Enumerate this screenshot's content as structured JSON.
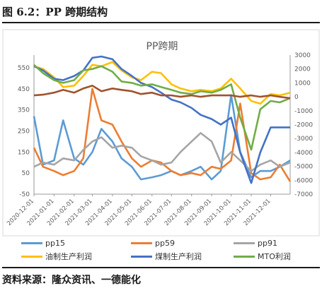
{
  "figure_caption": "图 6.2：PP 跨期结构",
  "source_note": "资料来源：隆众资讯、一德能化",
  "colors": {
    "pp15": "#5b9bd5",
    "pp59": "#ed7d31",
    "pp91": "#a5a5a5",
    "oil_profit": "#ffc000",
    "coal_profit": "#4472c4",
    "mto_profit": "#70ad47",
    "axis": "#999999",
    "text": "#595959"
  },
  "chart_data": {
    "type": "line",
    "title": "PP跨期",
    "x": [
      "2020-12-01",
      "2020-12-15",
      "2021-01-01",
      "2021-01-15",
      "2021-02-01",
      "2021-02-15",
      "2021-03-01",
      "2021-03-15",
      "2021-04-01",
      "2021-04-15",
      "2021-05-01",
      "2021-05-15",
      "2021-06-01",
      "2021-06-15",
      "2021-07-01",
      "2021-07-15",
      "2021-08-01",
      "2021-08-15",
      "2021-09-01",
      "2021-09-15",
      "2021-10-01",
      "2021-10-15",
      "2021-11-01",
      "2021-11-15",
      "2021-12-01",
      "2021-12-15",
      "2021-12-31"
    ],
    "x_tick_labels": [
      "2020-12-01",
      "2021-01-01",
      "2021-02-01",
      "2021-03-01",
      "2021-04-01",
      "2021-05-01",
      "2021-06-01",
      "2021-07-01",
      "2021-08-01",
      "2021-09-01",
      "2021-10-01",
      "2021-11-01",
      "2021-12-01"
    ],
    "y_left": {
      "ticks": [
        "-50",
        "50",
        "150",
        "250",
        "350",
        "450",
        "550"
      ],
      "lim": [
        -50,
        610
      ]
    },
    "y_right": {
      "ticks": [
        "-7000",
        "-6000",
        "-5000",
        "-4000",
        "-3000",
        "-2000",
        "-1000",
        "0",
        "1000",
        "2000",
        "3000"
      ],
      "lim": [
        -7000,
        3000
      ]
    },
    "series": [
      {
        "key": "pp15",
        "name": "pp15",
        "axis": "left",
        "values": [
          320,
          90,
          110,
          300,
          120,
          90,
          150,
          260,
          200,
          120,
          80,
          20,
          30,
          40,
          60,
          40,
          60,
          80,
          20,
          60,
          420,
          150,
          30,
          60,
          60,
          80,
          110
        ]
      },
      {
        "key": "pp59",
        "name": "pp59",
        "axis": "left",
        "values": [
          170,
          80,
          60,
          40,
          60,
          120,
          450,
          300,
          280,
          200,
          120,
          80,
          110,
          100,
          60,
          40,
          50,
          40,
          80,
          70,
          110,
          380,
          50,
          20,
          30,
          90,
          10
        ]
      },
      {
        "key": "pp91",
        "name": "pp91",
        "axis": "left",
        "values": [
          80,
          100,
          90,
          120,
          110,
          160,
          200,
          220,
          170,
          180,
          170,
          130,
          110,
          90,
          100,
          150,
          200,
          240,
          200,
          100,
          150,
          110,
          60,
          90,
          110,
          80,
          100
        ]
      },
      {
        "key": "oil_profit",
        "name": "油制生产利润",
        "axis": "right",
        "values": [
          2200,
          2000,
          1400,
          700,
          800,
          1500,
          2300,
          2200,
          2500,
          1900,
          1400,
          1200,
          1800,
          1700,
          900,
          600,
          400,
          500,
          400,
          600,
          1300,
          600,
          -300,
          -500,
          200,
          100,
          300
        ]
      },
      {
        "key": "coal_profit",
        "name": "煤制生产利润",
        "axis": "right",
        "values": [
          2200,
          1900,
          1300,
          1200,
          1500,
          1900,
          2800,
          2900,
          2700,
          2000,
          1500,
          1000,
          700,
          300,
          -200,
          -400,
          -800,
          -1300,
          -1600,
          -2000,
          -1500,
          -4000,
          -6200,
          -4000,
          -2200,
          -2200,
          -2200
        ]
      },
      {
        "key": "mto_profit",
        "name": "MTO利润",
        "axis": "right",
        "values": [
          2300,
          1700,
          1200,
          1000,
          1200,
          1900,
          2000,
          2200,
          1800,
          1100,
          1000,
          800,
          900,
          700,
          500,
          300,
          200,
          400,
          300,
          500,
          900,
          -1500,
          -3800,
          -900,
          -300,
          -400,
          -100
        ]
      },
      {
        "key": "mto_baseline",
        "name": "",
        "axis": "right",
        "color": "#a0522d",
        "values": [
          100,
          150,
          300,
          500,
          300,
          600,
          800,
          400,
          600,
          500,
          400,
          200,
          300,
          100,
          100,
          0,
          100,
          0,
          100,
          100,
          100,
          0,
          100,
          0,
          100,
          0,
          -100
        ]
      }
    ],
    "legend": [
      {
        "key": "pp15",
        "label": "pp15"
      },
      {
        "key": "pp59",
        "label": "pp59"
      },
      {
        "key": "pp91",
        "label": "pp91"
      },
      {
        "key": "oil_profit",
        "label": "油制生产利润"
      },
      {
        "key": "coal_profit",
        "label": "煤制生产利润"
      },
      {
        "key": "mto_profit",
        "label": "MTO利润"
      }
    ],
    "legend_position": "bottom",
    "grid": false
  }
}
